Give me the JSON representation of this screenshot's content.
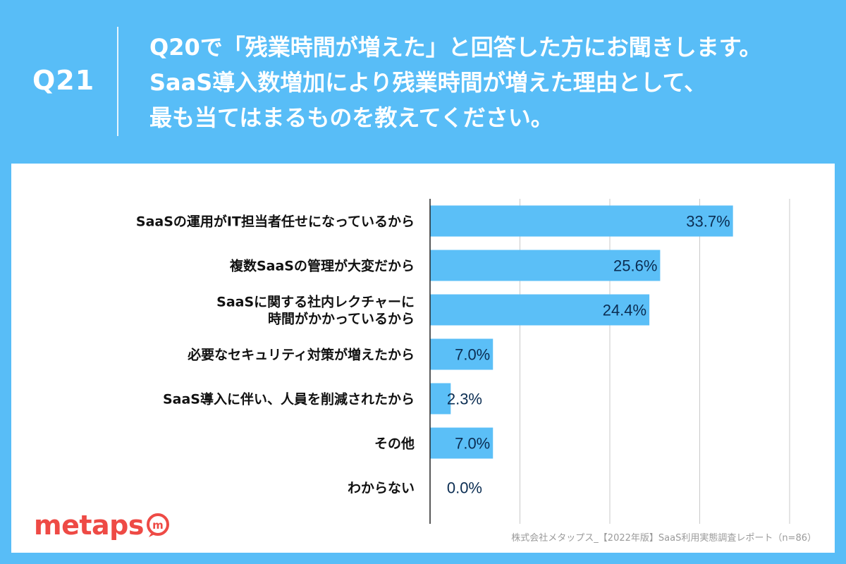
{
  "header": {
    "question_number": "Q21",
    "question_lines": [
      "Q20で「残業時間が増えた」と回答した方にお聞きします。",
      "SaaS導入数増加により残業時間が増えた理由として、",
      "最も当てはまるものを教えてください。"
    ]
  },
  "chart_data": {
    "type": "bar",
    "orientation": "horizontal",
    "categories": [
      [
        "SaaSの運用がIT担当者任せになっているから"
      ],
      [
        "複数SaaSの管理が大変だから"
      ],
      [
        "SaaSに関する社内レクチャーに",
        "時間がかかっているから"
      ],
      [
        "必要なセキュリティ対策が増えたから"
      ],
      [
        "SaaS導入に伴い、人員を削減されたから"
      ],
      [
        "その他"
      ],
      [
        "わからない"
      ]
    ],
    "values": [
      33.7,
      25.6,
      24.4,
      7.0,
      2.3,
      7.0,
      0.0
    ],
    "value_labels": [
      "33.7%",
      "25.6%",
      "24.4%",
      "7.0%",
      "2.3%",
      "7.0%",
      "0.0%"
    ],
    "xlim": [
      0,
      40
    ],
    "grid": true,
    "bar_color": "#5bbff7",
    "label_color": "#0b2d52"
  },
  "footer": {
    "logo_text": "metaps",
    "source": "株式会社メタップス_【2022年版】SaaS利用実態調査レポート（n=86）"
  },
  "colors": {
    "background": "#58bdf7",
    "logo": "#ee4a45"
  }
}
